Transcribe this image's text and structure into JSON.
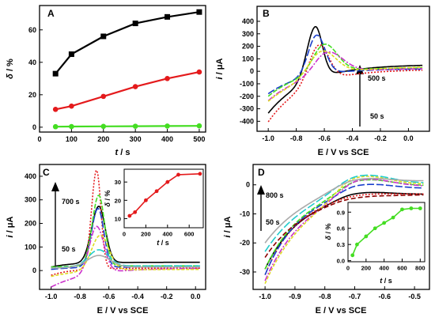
{
  "chart_data": [
    {
      "panel": "A",
      "type": "line",
      "xlabel_var": "t",
      "xlabel_unit": " / s",
      "ylabel_var": "δ",
      "ylabel_unit": " / %",
      "xlim": [
        0,
        520
      ],
      "ylim": [
        -3,
        75
      ],
      "xticks": [
        "0",
        "100",
        "200",
        "300",
        "400",
        "500"
      ],
      "yticks": [
        "0",
        "20",
        "40",
        "60"
      ],
      "series": [
        {
          "color": "#000000",
          "marker": "square",
          "x": [
            50,
            100,
            200,
            300,
            400,
            500
          ],
          "y": [
            33,
            45,
            56,
            64,
            68,
            71
          ]
        },
        {
          "color": "#e41a1c",
          "marker": "circle",
          "x": [
            50,
            100,
            200,
            300,
            400,
            500
          ],
          "y": [
            11,
            13,
            19,
            25,
            30,
            34
          ]
        },
        {
          "color": "#44dd22",
          "marker": "circle",
          "x": [
            50,
            100,
            200,
            300,
            400,
            500
          ],
          "y": [
            0.3,
            0.4,
            0.5,
            0.6,
            0.7,
            0.8
          ]
        }
      ]
    },
    {
      "panel": "B",
      "type": "line",
      "xlabel": "E / V vs SCE",
      "ylabel_var": "i",
      "ylabel_unit": " / μA",
      "xlim": [
        -1.08,
        0.15
      ],
      "ylim": [
        -480,
        520
      ],
      "xticks": [
        "-1.0",
        "-0.8",
        "-0.6",
        "-0.4",
        "-0.2",
        "0.0"
      ],
      "yticks": [
        "-400",
        "-300",
        "-200",
        "-100",
        "0",
        "100",
        "200",
        "300",
        "400"
      ],
      "annotations": [
        "500 s",
        "50 s"
      ]
    },
    {
      "panel": "C",
      "type": "line",
      "xlabel": "E / V vs SCE",
      "ylabel_var": "i",
      "ylabel_unit": " / μA",
      "xlim": [
        -1.08,
        0.07
      ],
      "ylim": [
        -80,
        450
      ],
      "xticks": [
        "-1.0",
        "-0.8",
        "-0.6",
        "-0.4",
        "-0.2",
        "0.0"
      ],
      "yticks": [
        "0",
        "100",
        "200",
        "300",
        "400"
      ],
      "annotations": [
        "700 s",
        "50 s"
      ],
      "inset": {
        "xlabel_var": "t",
        "xlabel_unit": " / s",
        "ylabel_var": "δ",
        "ylabel_unit": " / %",
        "xlim": [
          0,
          730
        ],
        "ylim": [
          5,
          37
        ],
        "xticks": [
          "0",
          "200",
          "400",
          "600"
        ],
        "yticks": [
          "10",
          "20",
          "30"
        ],
        "x": [
          50,
          100,
          200,
          300,
          400,
          500,
          700
        ],
        "y": [
          11.5,
          13.5,
          20,
          25,
          30,
          34,
          34.5
        ],
        "color": "#e41a1c"
      }
    },
    {
      "panel": "D",
      "type": "line",
      "xlabel": "E / V vs SCE",
      "ylabel_var": "i",
      "ylabel_unit": " / μA",
      "xlim": [
        -1.04,
        -0.45
      ],
      "ylim": [
        -36,
        7
      ],
      "xticks": [
        "-1.0",
        "-0.9",
        "-0.8",
        "-0.7",
        "-0.6",
        "-0.5"
      ],
      "yticks": [
        "-30",
        "-20",
        "-10",
        "0"
      ],
      "annotations": [
        "800 s",
        "50 s"
      ],
      "inset": {
        "xlabel_var": "t",
        "xlabel_unit": " / s",
        "ylabel_var": "δ",
        "ylabel_unit": " / %",
        "xlim": [
          0,
          850
        ],
        "ylim": [
          -0.02,
          1.08
        ],
        "xticks": [
          "0",
          "200",
          "400",
          "600",
          "800"
        ],
        "yticks": [
          "0.0",
          "0.3",
          "0.6",
          "0.9"
        ],
        "x": [
          50,
          100,
          200,
          300,
          400,
          500,
          600,
          700,
          800
        ],
        "y": [
          0.1,
          0.3,
          0.45,
          0.6,
          0.7,
          0.8,
          0.95,
          0.97,
          0.97
        ],
        "color": "#44dd22"
      }
    }
  ]
}
